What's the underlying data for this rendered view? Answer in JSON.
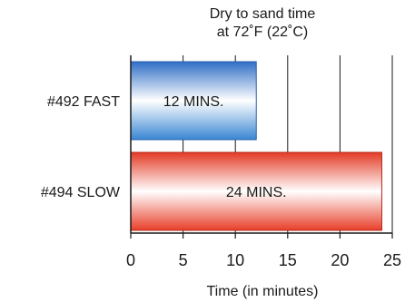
{
  "chart_data": {
    "type": "bar",
    "orientation": "horizontal",
    "title": "Dry to sand time",
    "subtitle": "at 72˚F (22˚C)",
    "xlabel": "Time (in minutes)",
    "ylabel": "",
    "categories": [
      "#492 FAST",
      "#494 SLOW"
    ],
    "values": [
      12,
      24
    ],
    "data_labels": [
      "12 MINS.",
      "24 MINS."
    ],
    "xlim": [
      0,
      25
    ],
    "xticks": [
      0,
      5,
      10,
      15,
      20,
      25
    ],
    "tick_labels": [
      "0",
      "5",
      "10",
      "15",
      "20",
      "25"
    ],
    "grid": "vertical lines at every 5 minutes",
    "colors": {
      "bar_1": "#3f7cc9",
      "bar_2": "#e8402b",
      "highlight": "#ffffff",
      "axis": "#1a1a1a"
    }
  }
}
